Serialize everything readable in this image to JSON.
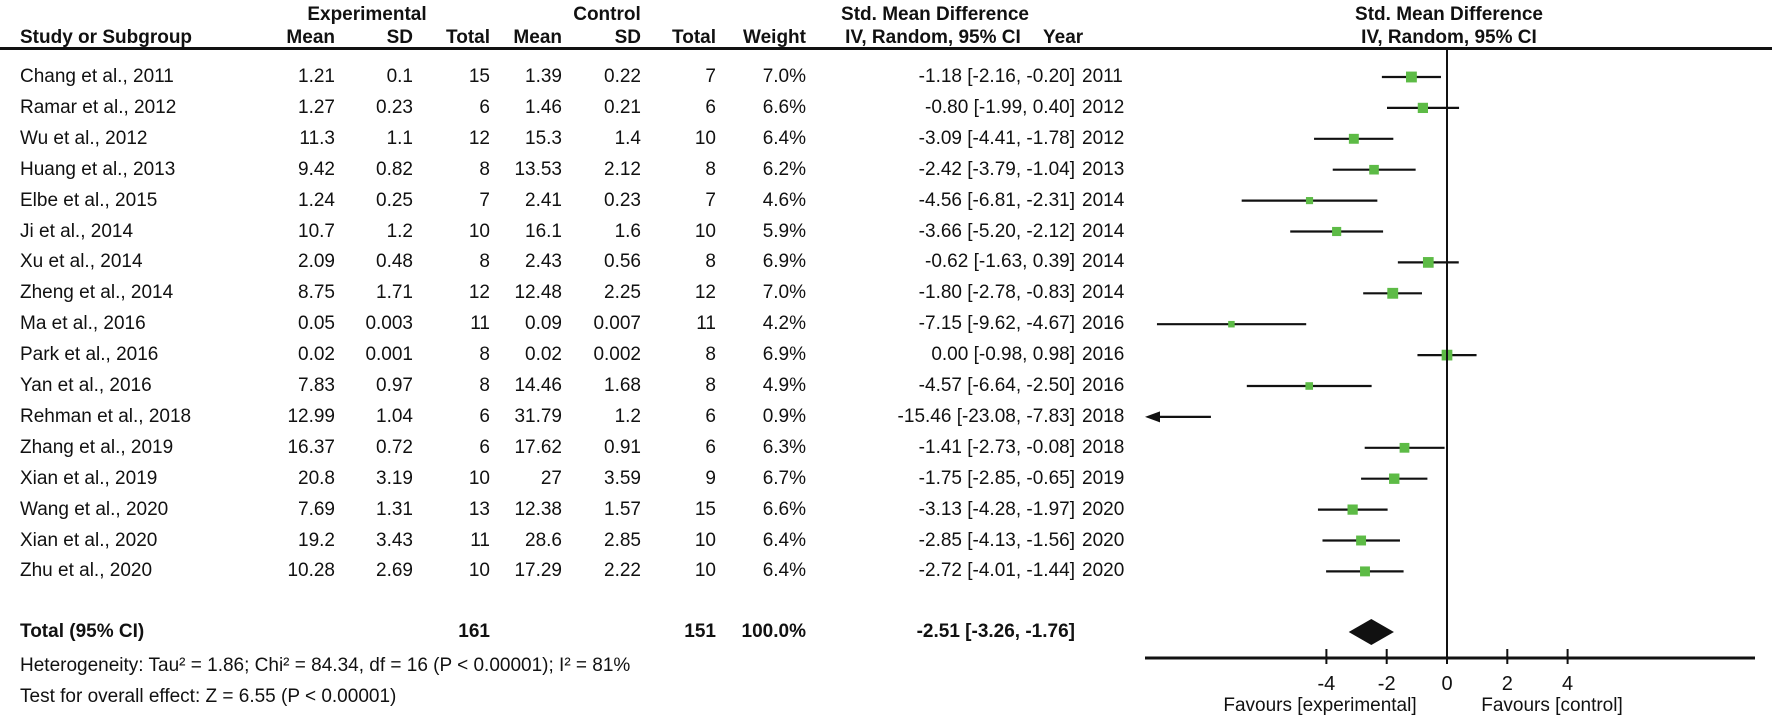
{
  "figure": {
    "header": {
      "group_experimental": "Experimental",
      "group_control": "Control",
      "smd_left_title": "Std. Mean Difference",
      "smd_right_title": "Std. Mean Difference",
      "col_study": "Study or Subgroup",
      "col_mean_exp": "Mean",
      "col_sd_exp": "SD",
      "col_total_exp": "Total",
      "col_mean_ctrl": "Mean",
      "col_sd_ctrl": "SD",
      "col_total_ctrl": "Total",
      "col_weight": "Weight",
      "col_iv_left": "IV, Random, 95% CI",
      "col_year": "Year",
      "col_iv_right": "IV, Random, 95% CI"
    },
    "footer": {
      "heterogeneity": "Heterogeneity: Tau² = 1.86; Chi² = 84.34, df = 16 (P < 0.00001); I² = 81%",
      "overall_test": "Test for overall effect: Z = 6.55 (P < 0.00001)"
    }
  },
  "chart_data": {
    "type": "forest",
    "effect_measure": "Std. Mean Difference, IV, Random, 95% CI",
    "marker_color": "#5dbb46",
    "line_color": "#111111",
    "studies": [
      {
        "name": "Chang et al., 2011",
        "exp_mean": "1.21",
        "exp_sd": "0.1",
        "exp_total": "15",
        "ctrl_mean": "1.39",
        "ctrl_sd": "0.22",
        "ctrl_total": "7",
        "weight": "7.0%",
        "smd": -1.18,
        "ci_low": -2.16,
        "ci_high": -0.2,
        "ci_label": "-1.18 [-2.16, -0.20]",
        "year": "2011"
      },
      {
        "name": "Ramar et al., 2012",
        "exp_mean": "1.27",
        "exp_sd": "0.23",
        "exp_total": "6",
        "ctrl_mean": "1.46",
        "ctrl_sd": "0.21",
        "ctrl_total": "6",
        "weight": "6.6%",
        "smd": -0.8,
        "ci_low": -1.99,
        "ci_high": 0.4,
        "ci_label": "-0.80 [-1.99, 0.40]",
        "year": "2012"
      },
      {
        "name": "Wu et al., 2012",
        "exp_mean": "11.3",
        "exp_sd": "1.1",
        "exp_total": "12",
        "ctrl_mean": "15.3",
        "ctrl_sd": "1.4",
        "ctrl_total": "10",
        "weight": "6.4%",
        "smd": -3.09,
        "ci_low": -4.41,
        "ci_high": -1.78,
        "ci_label": "-3.09 [-4.41, -1.78]",
        "year": "2012"
      },
      {
        "name": "Huang et al., 2013",
        "exp_mean": "9.42",
        "exp_sd": "0.82",
        "exp_total": "8",
        "ctrl_mean": "13.53",
        "ctrl_sd": "2.12",
        "ctrl_total": "8",
        "weight": "6.2%",
        "smd": -2.42,
        "ci_low": -3.79,
        "ci_high": -1.04,
        "ci_label": "-2.42 [-3.79, -1.04]",
        "year": "2013"
      },
      {
        "name": "Elbe et al., 2015",
        "exp_mean": "1.24",
        "exp_sd": "0.25",
        "exp_total": "7",
        "ctrl_mean": "2.41",
        "ctrl_sd": "0.23",
        "ctrl_total": "7",
        "weight": "4.6%",
        "smd": -4.56,
        "ci_low": -6.81,
        "ci_high": -2.31,
        "ci_label": "-4.56 [-6.81, -2.31]",
        "year": "2014"
      },
      {
        "name": "Ji et al., 2014",
        "exp_mean": "10.7",
        "exp_sd": "1.2",
        "exp_total": "10",
        "ctrl_mean": "16.1",
        "ctrl_sd": "1.6",
        "ctrl_total": "10",
        "weight": "5.9%",
        "smd": -3.66,
        "ci_low": -5.2,
        "ci_high": -2.12,
        "ci_label": "-3.66 [-5.20, -2.12]",
        "year": "2014"
      },
      {
        "name": "Xu et al., 2014",
        "exp_mean": "2.09",
        "exp_sd": "0.48",
        "exp_total": "8",
        "ctrl_mean": "2.43",
        "ctrl_sd": "0.56",
        "ctrl_total": "8",
        "weight": "6.9%",
        "smd": -0.62,
        "ci_low": -1.63,
        "ci_high": 0.39,
        "ci_label": "-0.62 [-1.63, 0.39]",
        "year": "2014"
      },
      {
        "name": "Zheng et al., 2014",
        "exp_mean": "8.75",
        "exp_sd": "1.71",
        "exp_total": "12",
        "ctrl_mean": "12.48",
        "ctrl_sd": "2.25",
        "ctrl_total": "12",
        "weight": "7.0%",
        "smd": -1.8,
        "ci_low": -2.78,
        "ci_high": -0.83,
        "ci_label": "-1.80 [-2.78, -0.83]",
        "year": "2014"
      },
      {
        "name": "Ma et al., 2016",
        "exp_mean": "0.05",
        "exp_sd": "0.003",
        "exp_total": "11",
        "ctrl_mean": "0.09",
        "ctrl_sd": "0.007",
        "ctrl_total": "11",
        "weight": "4.2%",
        "smd": -7.15,
        "ci_low": -9.62,
        "ci_high": -4.67,
        "ci_label": "-7.15 [-9.62, -4.67]",
        "year": "2016"
      },
      {
        "name": "Park et al., 2016",
        "exp_mean": "0.02",
        "exp_sd": "0.001",
        "exp_total": "8",
        "ctrl_mean": "0.02",
        "ctrl_sd": "0.002",
        "ctrl_total": "8",
        "weight": "6.9%",
        "smd": 0.0,
        "ci_low": -0.98,
        "ci_high": 0.98,
        "ci_label": "0.00 [-0.98, 0.98]",
        "year": "2016"
      },
      {
        "name": "Yan et al., 2016",
        "exp_mean": "7.83",
        "exp_sd": "0.97",
        "exp_total": "8",
        "ctrl_mean": "14.46",
        "ctrl_sd": "1.68",
        "ctrl_total": "8",
        "weight": "4.9%",
        "smd": -4.57,
        "ci_low": -6.64,
        "ci_high": -2.5,
        "ci_label": "-4.57 [-6.64, -2.50]",
        "year": "2016"
      },
      {
        "name": "Rehman et al., 2018",
        "exp_mean": "12.99",
        "exp_sd": "1.04",
        "exp_total": "6",
        "ctrl_mean": "31.79",
        "ctrl_sd": "1.2",
        "ctrl_total": "6",
        "weight": "0.9%",
        "smd": -15.46,
        "ci_low": -23.08,
        "ci_high": -7.83,
        "ci_label": "-15.46 [-23.08, -7.83]",
        "year": "2018"
      },
      {
        "name": "Zhang et al., 2019",
        "exp_mean": "16.37",
        "exp_sd": "0.72",
        "exp_total": "6",
        "ctrl_mean": "17.62",
        "ctrl_sd": "0.91",
        "ctrl_total": "6",
        "weight": "6.3%",
        "smd": -1.41,
        "ci_low": -2.73,
        "ci_high": -0.08,
        "ci_label": "-1.41 [-2.73, -0.08]",
        "year": "2018"
      },
      {
        "name": "Xian et al., 2019",
        "exp_mean": "20.8",
        "exp_sd": "3.19",
        "exp_total": "10",
        "ctrl_mean": "27",
        "ctrl_sd": "3.59",
        "ctrl_total": "9",
        "weight": "6.7%",
        "smd": -1.75,
        "ci_low": -2.85,
        "ci_high": -0.65,
        "ci_label": "-1.75 [-2.85, -0.65]",
        "year": "2019"
      },
      {
        "name": "Wang et al., 2020",
        "exp_mean": "7.69",
        "exp_sd": "1.31",
        "exp_total": "13",
        "ctrl_mean": "12.38",
        "ctrl_sd": "1.57",
        "ctrl_total": "15",
        "weight": "6.6%",
        "smd": -3.13,
        "ci_low": -4.28,
        "ci_high": -1.97,
        "ci_label": "-3.13 [-4.28, -1.97]",
        "year": "2020"
      },
      {
        "name": "Xian et al., 2020",
        "exp_mean": "19.2",
        "exp_sd": "3.43",
        "exp_total": "11",
        "ctrl_mean": "28.6",
        "ctrl_sd": "2.85",
        "ctrl_total": "10",
        "weight": "6.4%",
        "smd": -2.85,
        "ci_low": -4.13,
        "ci_high": -1.56,
        "ci_label": "-2.85 [-4.13, -1.56]",
        "year": "2020"
      },
      {
        "name": "Zhu et al., 2020",
        "exp_mean": "10.28",
        "exp_sd": "2.69",
        "exp_total": "10",
        "ctrl_mean": "17.29",
        "ctrl_sd": "2.22",
        "ctrl_total": "10",
        "weight": "6.4%",
        "smd": -2.72,
        "ci_low": -4.01,
        "ci_high": -1.44,
        "ci_label": "-2.72 [-4.01, -1.44]",
        "year": "2020"
      }
    ],
    "total": {
      "label": "Total (95% CI)",
      "exp_total": "161",
      "ctrl_total": "151",
      "weight": "100.0%",
      "smd": -2.51,
      "ci_low": -3.26,
      "ci_high": -1.76,
      "ci_label": "-2.51 [-3.26, -1.76]"
    },
    "axis": {
      "ticks": [
        -4,
        -2,
        0,
        2,
        4
      ],
      "shown_range": [
        -10,
        10
      ],
      "favours_left": "Favours [experimental]",
      "favours_right": "Favours [control]"
    }
  }
}
